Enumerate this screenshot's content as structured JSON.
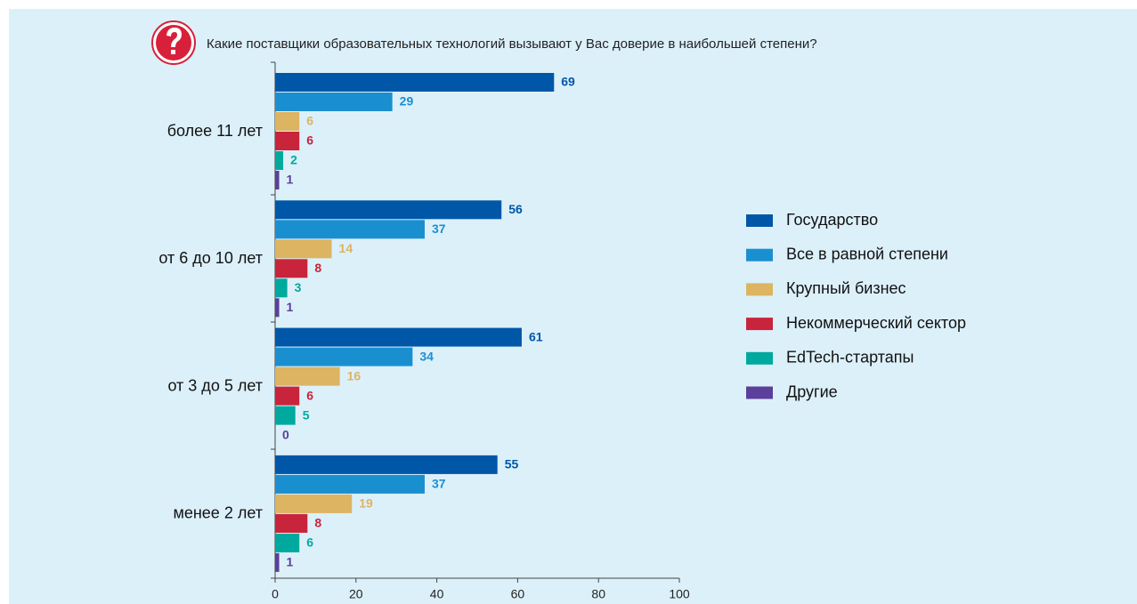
{
  "chart_data": {
    "type": "bar",
    "orientation": "horizontal",
    "title": "Какие поставщики образовательных технологий вызывают у Вас доверие в наибольшей степени?",
    "categories": [
      "более 11 лет",
      "от 6 до 10 лет",
      "от 3 до 5 лет",
      "менее 2 лет"
    ],
    "series": [
      {
        "name": "Государство",
        "color": "#0057a8",
        "values": [
          69,
          56,
          61,
          55
        ]
      },
      {
        "name": "Все в равной степени",
        "color": "#1a8fd0",
        "values": [
          29,
          37,
          34,
          37
        ]
      },
      {
        "name": "Крупный бизнес",
        "color": "#dcb462",
        "values": [
          6,
          14,
          16,
          19
        ]
      },
      {
        "name": "Некоммерческий сектор",
        "color": "#c8243c",
        "values": [
          6,
          8,
          6,
          8
        ]
      },
      {
        "name": "EdTech-стартапы",
        "color": "#00a99d",
        "values": [
          2,
          3,
          5,
          6
        ]
      },
      {
        "name": "Другие",
        "color": "#5b3f9a",
        "values": [
          1,
          1,
          0,
          1
        ]
      }
    ],
    "xlim": [
      0,
      100
    ],
    "xticks": [
      0,
      20,
      40,
      60,
      80,
      100
    ],
    "legend": "right"
  }
}
